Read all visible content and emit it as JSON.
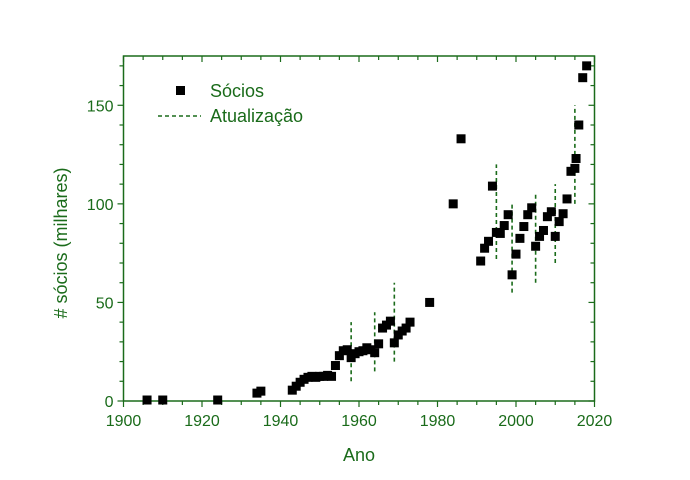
{
  "chart_data": {
    "type": "scatter",
    "title": "",
    "xlabel": "Ano",
    "ylabel": "# sócios (milhares)",
    "xlim": [
      1900,
      2020
    ],
    "ylim": [
      0,
      175
    ],
    "xticks": [
      1900,
      1920,
      1940,
      1960,
      1980,
      2000,
      2020
    ],
    "yticks": [
      0,
      50,
      100,
      150
    ],
    "x_minor_step": 5,
    "y_minor_step": 10,
    "grid": false,
    "legend_position": "upper-left",
    "legend": [
      {
        "label": "Sócios",
        "marker": "square",
        "color": "#000000"
      },
      {
        "label": "Atualização",
        "style": "dashed-line",
        "color": "#1a6b1a"
      }
    ],
    "series": [
      {
        "name": "Sócios",
        "marker": "square",
        "color": "#000000",
        "points": [
          [
            1906,
            0.5
          ],
          [
            1910,
            0.5
          ],
          [
            1924,
            0.5
          ],
          [
            1934,
            4
          ],
          [
            1935,
            5
          ],
          [
            1943,
            5.5
          ],
          [
            1944,
            7.5
          ],
          [
            1945,
            9.5
          ],
          [
            1946,
            11
          ],
          [
            1947,
            12
          ],
          [
            1948,
            12.5
          ],
          [
            1949,
            12
          ],
          [
            1950,
            12.5
          ],
          [
            1951,
            12.5
          ],
          [
            1952,
            13
          ],
          [
            1953,
            12.5
          ],
          [
            1954,
            18
          ],
          [
            1955,
            23
          ],
          [
            1956,
            25.5
          ],
          [
            1957,
            26
          ],
          [
            1958,
            22
          ],
          [
            1959,
            24
          ],
          [
            1960,
            25
          ],
          [
            1961,
            25.5
          ],
          [
            1962,
            27
          ],
          [
            1963,
            26
          ],
          [
            1964,
            24.5
          ],
          [
            1965,
            29
          ],
          [
            1966,
            37
          ],
          [
            1967,
            38.5
          ],
          [
            1968,
            40.5
          ],
          [
            1969,
            29.5
          ],
          [
            1970,
            33.5
          ],
          [
            1971,
            35.5
          ],
          [
            1972,
            37
          ],
          [
            1973,
            40
          ],
          [
            1978,
            50
          ],
          [
            1984,
            100
          ],
          [
            1986,
            133
          ],
          [
            1991,
            71
          ],
          [
            1992,
            77.5
          ],
          [
            1993,
            81
          ],
          [
            1994,
            109
          ],
          [
            1995,
            85.5
          ],
          [
            1996,
            85
          ],
          [
            1997,
            89
          ],
          [
            1998,
            94.5
          ],
          [
            1999,
            64
          ],
          [
            2000,
            74.5
          ],
          [
            2001,
            82.5
          ],
          [
            2002,
            88.5
          ],
          [
            2003,
            94.5
          ],
          [
            2004,
            98
          ],
          [
            2005,
            78.5
          ],
          [
            2006,
            83.5
          ],
          [
            2007,
            86.5
          ],
          [
            2008,
            93.5
          ],
          [
            2009,
            96
          ],
          [
            2010,
            83.5
          ],
          [
            2011,
            91
          ],
          [
            2012,
            95
          ],
          [
            2013,
            102.5
          ],
          [
            2014,
            116.5
          ],
          [
            2015,
            118
          ],
          [
            2015.3,
            123
          ],
          [
            2016,
            140
          ],
          [
            2017,
            164
          ],
          [
            2018,
            170
          ]
        ]
      },
      {
        "name": "Atualização",
        "style": "dashed",
        "color": "#1a6b1a",
        "segments": [
          {
            "x": 1958,
            "y0": 10,
            "y1": 40
          },
          {
            "x": 1964,
            "y0": 15,
            "y1": 45
          },
          {
            "x": 1969,
            "y0": 20,
            "y1": 60
          },
          {
            "x": 1995,
            "y0": 72,
            "y1": 120
          },
          {
            "x": 1999,
            "y0": 55,
            "y1": 100
          },
          {
            "x": 2005,
            "y0": 60,
            "y1": 105
          },
          {
            "x": 2010,
            "y0": 70,
            "y1": 110
          },
          {
            "x": 2015,
            "y0": 100,
            "y1": 150
          }
        ]
      }
    ]
  },
  "colors": {
    "axis": "#1a6b1a",
    "marker": "#000000",
    "dashed": "#1a6b1a"
  }
}
